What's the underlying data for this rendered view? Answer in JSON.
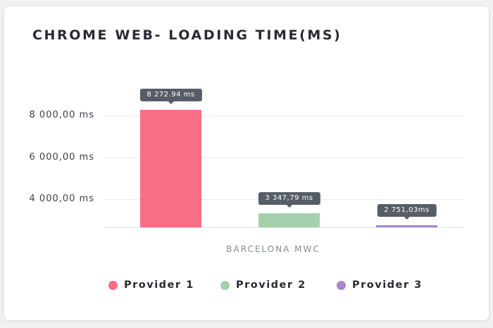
{
  "chart_data": {
    "type": "bar",
    "title": "CHROME WEB- LOADING TIME(MS)",
    "categories": [
      "BARCELONA MWC"
    ],
    "series": [
      {
        "name": "Provider 1",
        "value": 8272.94,
        "tooltip": "8 272.94 ms",
        "color": "#f76e85"
      },
      {
        "name": "Provider 2",
        "value": 3347.79,
        "tooltip": "3 347,79 ms",
        "color": "#a4d1ac"
      },
      {
        "name": "Provider 3",
        "value": 2751.03,
        "tooltip": "2 751,03ms",
        "color": "#a687c9"
      }
    ],
    "xlabel": "BARCELONA MWC",
    "ylabel": "",
    "y_unit": "ms",
    "ylim": [
      2666.67,
      8900
    ],
    "y_ticks": [
      {
        "value": 8000,
        "label": "8 000,00 ms"
      },
      {
        "value": 6000,
        "label": "6 000,00 ms"
      },
      {
        "value": 4000,
        "label": "4 000,00 ms"
      }
    ],
    "grid": true,
    "legend_position": "bottom"
  },
  "colors": {
    "page_bg": "#f1f1f1",
    "card_bg": "#ffffff",
    "title": "#2a2a33",
    "tick_label": "#3f3f48",
    "axis_label": "#828a9b",
    "legend_label": "#2a2a33",
    "grid": "#ebebee",
    "baseline": "#e3e3e7",
    "tooltip_bg": "#575d67",
    "tooltip_text": "#ffffff"
  }
}
